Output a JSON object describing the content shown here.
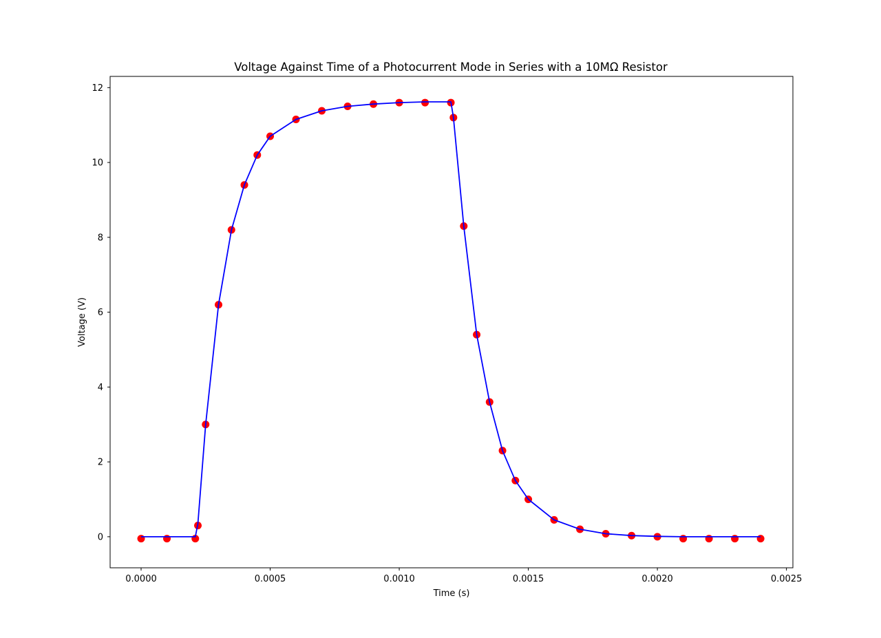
{
  "chart_data": {
    "type": "scatter",
    "title": "Voltage Against Time of a Photocurrent Mode in Series with a 10MΩ Resistor",
    "xlabel": "Time (s)",
    "ylabel": "Voltage (V)",
    "xlim": [
      -0.00012,
      0.002525
    ],
    "ylim": [
      -0.83,
      12.3
    ],
    "x_ticks": [
      0.0,
      0.0005,
      0.001,
      0.0015,
      0.002,
      0.0025
    ],
    "x_tick_labels": [
      "0.0000",
      "0.0005",
      "0.0010",
      "0.0015",
      "0.0020",
      "0.0025"
    ],
    "y_ticks": [
      0,
      2,
      4,
      6,
      8,
      10,
      12
    ],
    "y_tick_labels": [
      "0",
      "2",
      "4",
      "6",
      "8",
      "10",
      "12"
    ],
    "grid": false,
    "legend": "none",
    "series": [
      {
        "kind": "scatter",
        "color": "#ff0000",
        "x": [
          0.0,
          0.0001,
          0.00021,
          0.00022,
          0.00025,
          0.0003,
          0.00035,
          0.0004,
          0.00045,
          0.0005,
          0.0006,
          0.0007,
          0.0008,
          0.0009,
          0.001,
          0.0011,
          0.0012,
          0.00121,
          0.00125,
          0.0013,
          0.00135,
          0.0014,
          0.00145,
          0.0015,
          0.0016,
          0.0017,
          0.0018,
          0.0019,
          0.002,
          0.0021,
          0.0022,
          0.0023,
          0.0024
        ],
        "y": [
          -0.05,
          -0.05,
          -0.05,
          0.3,
          3.0,
          6.2,
          8.2,
          9.4,
          10.2,
          10.7,
          11.15,
          11.38,
          11.5,
          11.56,
          11.6,
          11.6,
          11.6,
          11.2,
          8.3,
          5.4,
          3.6,
          2.3,
          1.5,
          1.0,
          0.45,
          0.2,
          0.08,
          0.03,
          0.0,
          -0.05,
          -0.05,
          -0.05,
          -0.05
        ]
      },
      {
        "kind": "line",
        "color": "#0000ff",
        "x": [
          0.0,
          0.0001,
          0.00021,
          0.00022,
          0.00025,
          0.0003,
          0.00035,
          0.0004,
          0.00045,
          0.0005,
          0.0006,
          0.0007,
          0.0008,
          0.0009,
          0.001,
          0.0011,
          0.0012,
          0.00121,
          0.00125,
          0.0013,
          0.00135,
          0.0014,
          0.00145,
          0.0015,
          0.0016,
          0.0017,
          0.0018,
          0.0019,
          0.002,
          0.0021,
          0.0022,
          0.0023,
          0.0024
        ],
        "y": [
          0.0,
          0.0,
          0.0,
          0.35,
          3.0,
          6.2,
          8.2,
          9.4,
          10.2,
          10.7,
          11.15,
          11.38,
          11.5,
          11.56,
          11.6,
          11.62,
          11.62,
          11.2,
          8.3,
          5.4,
          3.6,
          2.3,
          1.5,
          1.0,
          0.45,
          0.2,
          0.08,
          0.03,
          0.01,
          0.0,
          0.0,
          0.0,
          0.0
        ]
      }
    ]
  }
}
